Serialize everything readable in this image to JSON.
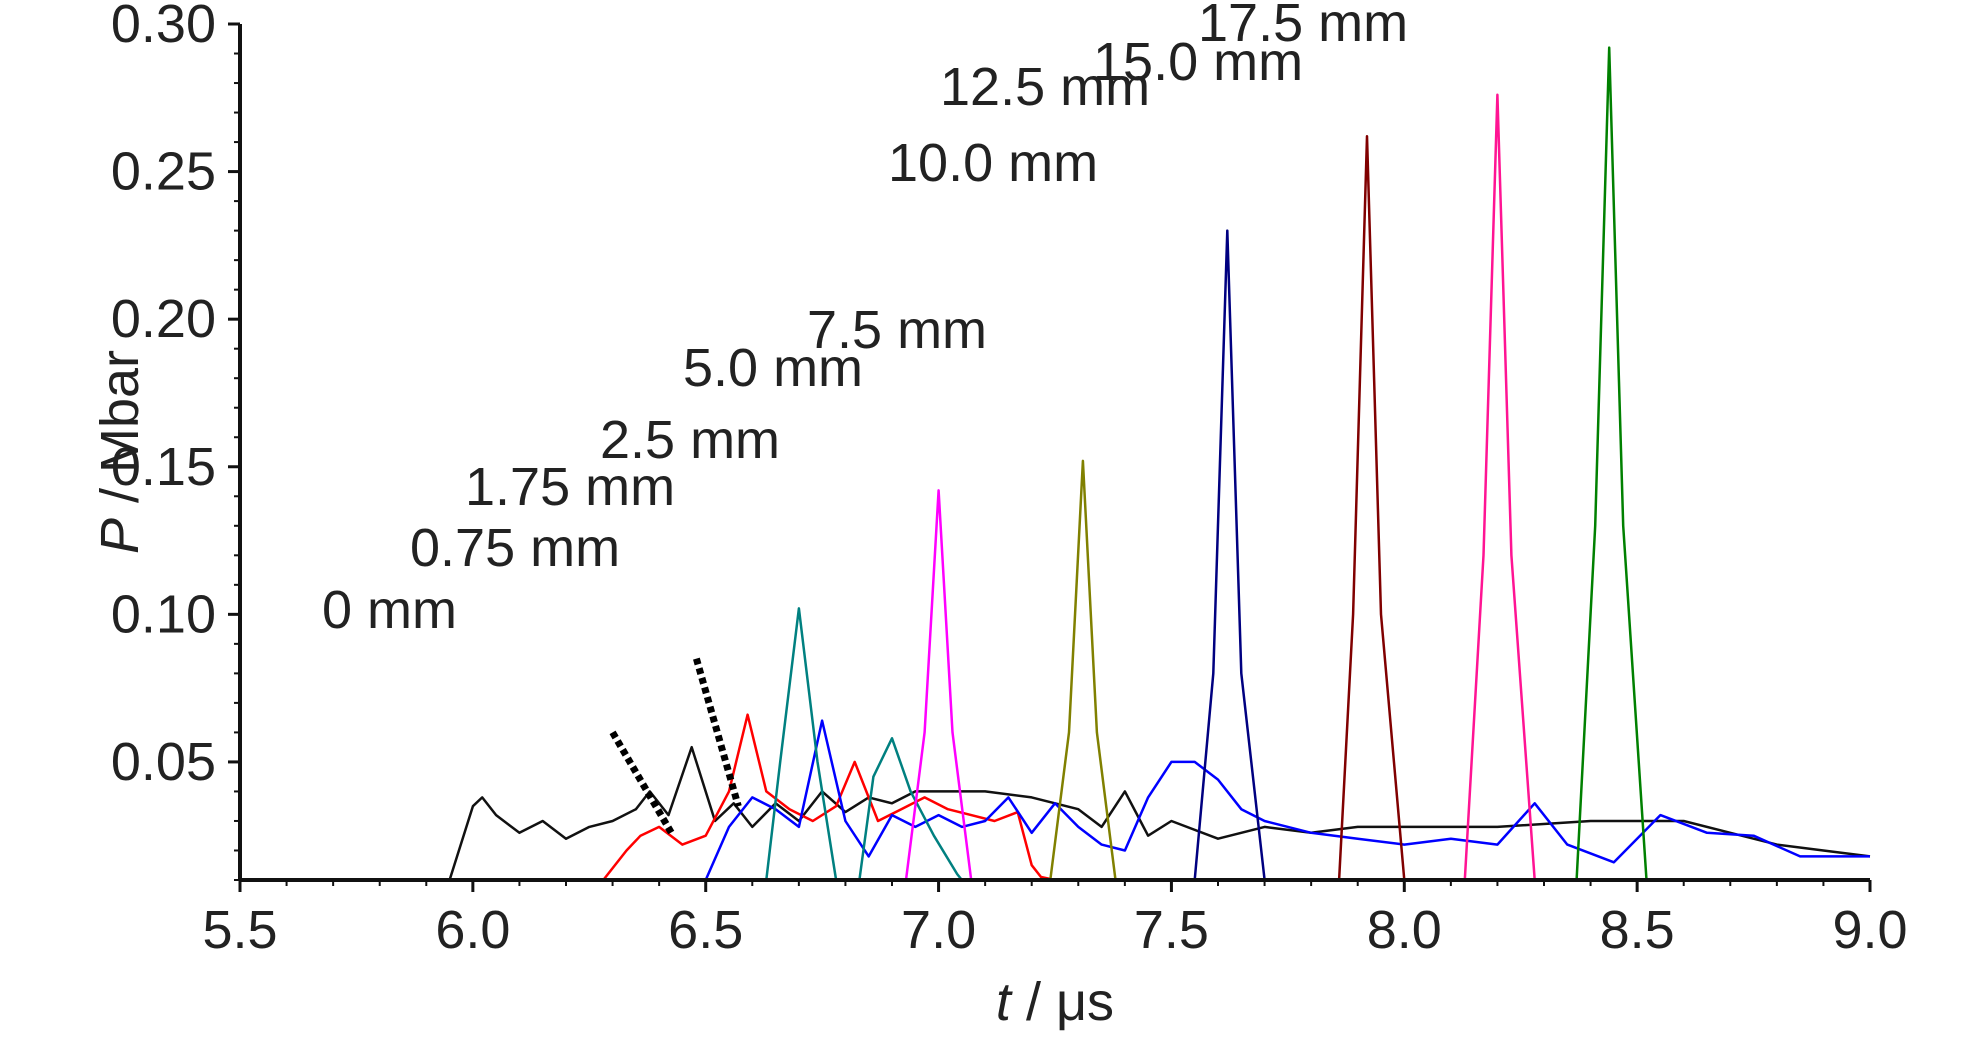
{
  "chart_data": {
    "type": "line",
    "title": "",
    "xlabel": {
      "symbol": "t",
      "unit": " / μs"
    },
    "ylabel": {
      "symbol": "P",
      "unit": " / Mbar"
    },
    "xlim": [
      5.5,
      9.0
    ],
    "ylim": [
      0.01,
      0.3
    ],
    "x_ticks": [
      "5.5",
      "6.0",
      "6.5",
      "7.0",
      "7.5",
      "8.0",
      "8.5",
      "9.0"
    ],
    "y_ticks": [
      "0.05",
      "0.10",
      "0.15",
      "0.20",
      "0.25",
      "0.30"
    ],
    "grid": false,
    "legend": "none (labels placed next to peaks)",
    "series": [
      {
        "name": "0 mm",
        "color": "#111111",
        "dash": false,
        "points": [
          [
            5.95,
            0.01
          ],
          [
            6.0,
            0.035
          ],
          [
            6.02,
            0.038
          ],
          [
            6.05,
            0.032
          ],
          [
            6.1,
            0.026
          ],
          [
            6.15,
            0.03
          ],
          [
            6.2,
            0.024
          ],
          [
            6.25,
            0.028
          ],
          [
            6.3,
            0.03
          ],
          [
            6.35,
            0.034
          ],
          [
            6.38,
            0.04
          ],
          [
            6.42,
            0.032
          ],
          [
            6.47,
            0.055
          ],
          [
            6.52,
            0.03
          ],
          [
            6.56,
            0.036
          ],
          [
            6.6,
            0.028
          ],
          [
            6.65,
            0.036
          ],
          [
            6.7,
            0.03
          ],
          [
            6.75,
            0.04
          ],
          [
            6.8,
            0.033
          ],
          [
            6.85,
            0.038
          ],
          [
            6.9,
            0.036
          ],
          [
            6.95,
            0.04
          ],
          [
            7.0,
            0.04
          ],
          [
            7.1,
            0.04
          ],
          [
            7.2,
            0.038
          ],
          [
            7.3,
            0.034
          ],
          [
            7.35,
            0.028
          ],
          [
            7.4,
            0.04
          ],
          [
            7.45,
            0.025
          ],
          [
            7.5,
            0.03
          ],
          [
            7.6,
            0.024
          ],
          [
            7.7,
            0.028
          ],
          [
            7.8,
            0.026
          ],
          [
            7.9,
            0.028
          ],
          [
            8.0,
            0.028
          ],
          [
            8.2,
            0.028
          ],
          [
            8.4,
            0.03
          ],
          [
            8.6,
            0.03
          ],
          [
            8.7,
            0.026
          ],
          [
            8.8,
            0.022
          ],
          [
            8.9,
            0.02
          ],
          [
            9.0,
            0.018
          ]
        ]
      },
      {
        "name": "0.75 mm",
        "color": "#ff0000",
        "dash": false,
        "points": [
          [
            6.28,
            0.01
          ],
          [
            6.33,
            0.02
          ],
          [
            6.36,
            0.025
          ],
          [
            6.4,
            0.028
          ],
          [
            6.45,
            0.022
          ],
          [
            6.5,
            0.025
          ],
          [
            6.55,
            0.04
          ],
          [
            6.59,
            0.066
          ],
          [
            6.63,
            0.04
          ],
          [
            6.68,
            0.034
          ],
          [
            6.73,
            0.03
          ],
          [
            6.78,
            0.035
          ],
          [
            6.82,
            0.05
          ],
          [
            6.87,
            0.03
          ],
          [
            6.92,
            0.034
          ],
          [
            6.97,
            0.038
          ],
          [
            7.02,
            0.034
          ],
          [
            7.07,
            0.032
          ],
          [
            7.12,
            0.03
          ],
          [
            7.17,
            0.033
          ],
          [
            7.2,
            0.015
          ],
          [
            7.22,
            0.011
          ],
          [
            7.25,
            0.01
          ]
        ]
      },
      {
        "name": "1.75 mm",
        "color": "#0000ff",
        "dash": false,
        "points": [
          [
            6.5,
            0.01
          ],
          [
            6.55,
            0.028
          ],
          [
            6.6,
            0.038
          ],
          [
            6.65,
            0.034
          ],
          [
            6.7,
            0.028
          ],
          [
            6.75,
            0.064
          ],
          [
            6.8,
            0.03
          ],
          [
            6.85,
            0.018
          ],
          [
            6.9,
            0.032
          ],
          [
            6.95,
            0.028
          ],
          [
            7.0,
            0.032
          ],
          [
            7.05,
            0.028
          ],
          [
            7.1,
            0.03
          ],
          [
            7.15,
            0.038
          ],
          [
            7.2,
            0.026
          ],
          [
            7.25,
            0.036
          ],
          [
            7.3,
            0.028
          ],
          [
            7.35,
            0.022
          ],
          [
            7.4,
            0.02
          ],
          [
            7.45,
            0.038
          ],
          [
            7.5,
            0.05
          ],
          [
            7.55,
            0.05
          ],
          [
            7.6,
            0.044
          ],
          [
            7.65,
            0.034
          ],
          [
            7.7,
            0.03
          ],
          [
            7.8,
            0.026
          ],
          [
            7.9,
            0.024
          ],
          [
            8.0,
            0.022
          ],
          [
            8.1,
            0.024
          ],
          [
            8.2,
            0.022
          ],
          [
            8.28,
            0.036
          ],
          [
            8.35,
            0.022
          ],
          [
            8.45,
            0.016
          ],
          [
            8.55,
            0.032
          ],
          [
            8.65,
            0.026
          ],
          [
            8.75,
            0.025
          ],
          [
            8.85,
            0.018
          ],
          [
            9.0,
            0.018
          ]
        ]
      },
      {
        "name": "2.5 mm",
        "color": "#008080",
        "dash": false,
        "points": [
          [
            6.63,
            0.01
          ],
          [
            6.66,
            0.05
          ],
          [
            6.7,
            0.102
          ],
          [
            6.74,
            0.05
          ],
          [
            6.78,
            0.01
          ],
          [
            6.83,
            0.01
          ],
          [
            6.86,
            0.045
          ],
          [
            6.9,
            0.058
          ],
          [
            6.94,
            0.04
          ],
          [
            6.99,
            0.025
          ],
          [
            7.04,
            0.012
          ],
          [
            7.05,
            0.01
          ]
        ]
      },
      {
        "name": "5.0 mm",
        "color": "#ff00ff",
        "dash": false,
        "points": [
          [
            6.93,
            0.01
          ],
          [
            6.97,
            0.06
          ],
          [
            7.0,
            0.142
          ],
          [
            7.03,
            0.06
          ],
          [
            7.07,
            0.01
          ]
        ]
      },
      {
        "name": "7.5 mm",
        "color": "#808000",
        "dash": false,
        "points": [
          [
            7.24,
            0.01
          ],
          [
            7.28,
            0.06
          ],
          [
            7.31,
            0.152
          ],
          [
            7.34,
            0.06
          ],
          [
            7.38,
            0.01
          ]
        ]
      },
      {
        "name": "10.0 mm",
        "color": "#000080",
        "dash": false,
        "points": [
          [
            7.55,
            0.01
          ],
          [
            7.59,
            0.08
          ],
          [
            7.62,
            0.23
          ],
          [
            7.65,
            0.08
          ],
          [
            7.7,
            0.01
          ]
        ]
      },
      {
        "name": "12.5 mm",
        "color": "#800000",
        "dash": false,
        "points": [
          [
            7.86,
            0.01
          ],
          [
            7.89,
            0.1
          ],
          [
            7.92,
            0.262
          ],
          [
            7.95,
            0.1
          ],
          [
            8.0,
            0.01
          ]
        ]
      },
      {
        "name": "15.0 mm",
        "color": "#ff1493",
        "dash": false,
        "points": [
          [
            8.13,
            0.01
          ],
          [
            8.17,
            0.12
          ],
          [
            8.2,
            0.276
          ],
          [
            8.23,
            0.12
          ],
          [
            8.28,
            0.01
          ]
        ]
      },
      {
        "name": "17.5 mm",
        "color": "#008000",
        "dash": false,
        "points": [
          [
            8.37,
            0.01
          ],
          [
            8.41,
            0.13
          ],
          [
            8.44,
            0.292
          ],
          [
            8.47,
            0.13
          ],
          [
            8.52,
            0.01
          ]
        ]
      }
    ],
    "annotations": [
      {
        "text": "0 mm",
        "color": "#222222"
      },
      {
        "text": "0.75 mm",
        "color": "#222222",
        "leader": {
          "style": "dashed",
          "from": [
            6.3,
            0.06
          ],
          "to": [
            6.43,
            0.025
          ]
        }
      },
      {
        "text": "1.75 mm",
        "color": "#222222",
        "leader": {
          "style": "dashed",
          "from": [
            6.48,
            0.085
          ],
          "to": [
            6.57,
            0.035
          ]
        }
      },
      {
        "text": "2.5 mm",
        "color": "#222222"
      },
      {
        "text": "5.0 mm",
        "color": "#222222"
      },
      {
        "text": "7.5 mm",
        "color": "#222222"
      },
      {
        "text": "10.0 mm",
        "color": "#222222"
      },
      {
        "text": "12.5 mm",
        "color": "#222222"
      },
      {
        "text": "15.0 mm",
        "color": "#222222"
      },
      {
        "text": "17.5 mm",
        "color": "#222222"
      }
    ]
  }
}
